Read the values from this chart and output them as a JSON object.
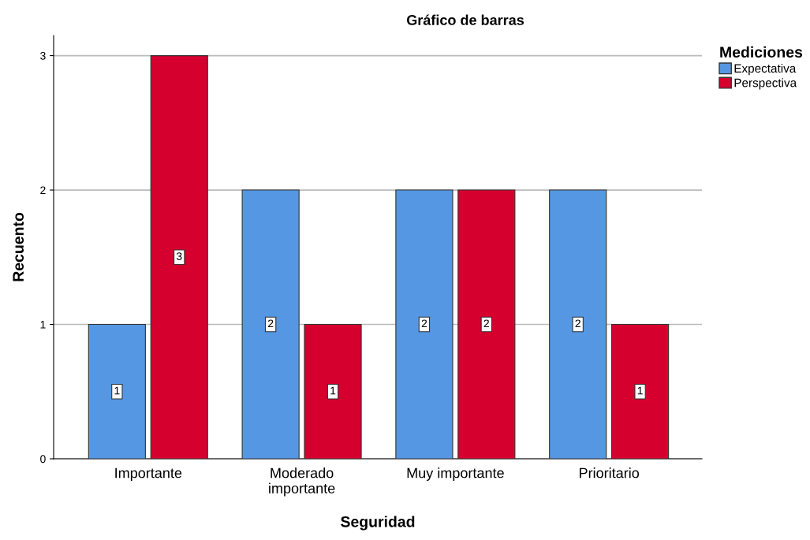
{
  "chart_data": {
    "type": "bar",
    "title": "Gráfico de barras",
    "xlabel": "Seguridad",
    "ylabel": "Recuento",
    "legend_title": "Mediciones",
    "categories": [
      "Importante",
      "Moderado\nimportante",
      "Muy importante",
      "Prioritario"
    ],
    "series": [
      {
        "name": "Expectativa",
        "color": "#5597e2",
        "values": [
          1,
          2,
          2,
          2
        ]
      },
      {
        "name": "Perspectiva",
        "color": "#d6002f",
        "values": [
          3,
          1,
          2,
          1
        ]
      }
    ],
    "ylim": [
      0,
      3.15
    ],
    "yticks": [
      0,
      1,
      2,
      3
    ],
    "grid": "y",
    "legend": "top right",
    "data_labels": true
  }
}
